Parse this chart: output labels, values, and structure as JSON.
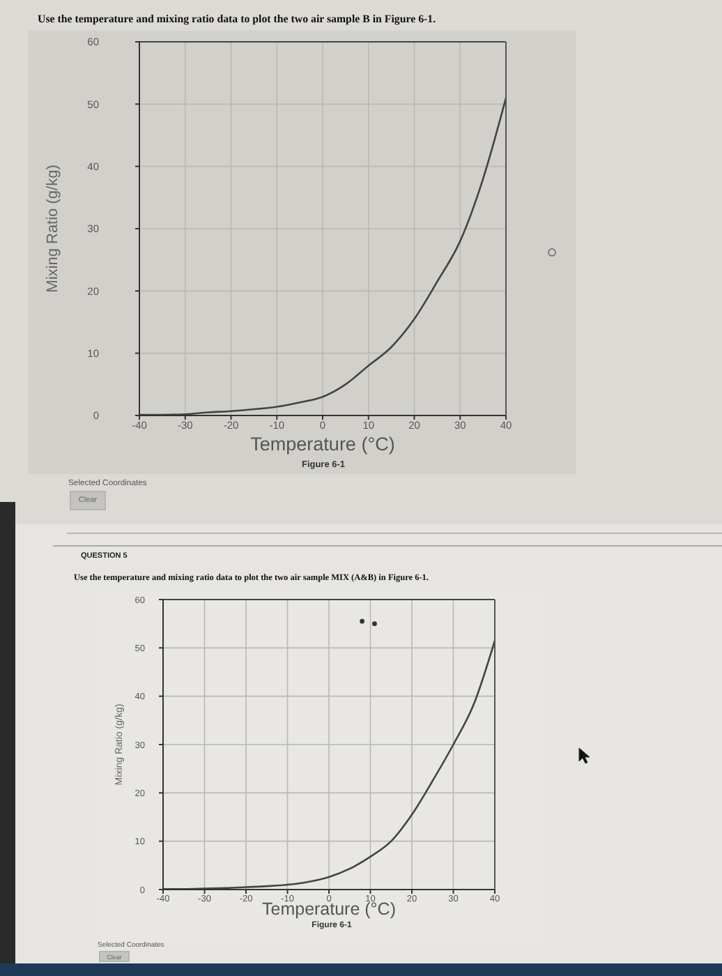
{
  "chart_data": [
    {
      "type": "line",
      "title": "Use the temperature and mixing ratio data to plot the two air sample B in Figure 6-1.",
      "xlabel": "Temperature (°C)",
      "ylabel": "Mixing Ratio (g/kg)",
      "annotations": [
        "Figure 6-1",
        "Selected Coordinates",
        "Clear"
      ],
      "x": [
        -40,
        -35,
        -30,
        -25,
        -20,
        -15,
        -10,
        -5,
        0,
        5,
        10,
        15,
        20,
        25,
        30,
        35,
        40
      ],
      "series": [
        {
          "color": "#444444",
          "values": [
            0.1,
            0.1,
            0.2,
            0.5,
            0.7,
            1,
            1.4,
            2.1,
            3,
            5,
            8,
            11,
            15.5,
            21.5,
            28,
            38,
            51
          ]
        }
      ],
      "xlim": [
        -40,
        40
      ],
      "ylim": [
        0,
        60
      ],
      "xticks": [
        -40,
        -30,
        -20,
        -10,
        0,
        10,
        20,
        30,
        40
      ],
      "yticks": [
        0,
        10,
        20,
        30,
        40,
        50,
        60
      ],
      "grid": true,
      "marker": "none"
    },
    {
      "type": "line",
      "subtitle": "QUESTION 5",
      "title": "Use the temperature and mixing ratio data to plot the two air sample MIX (A&B) in Figure 6-1.",
      "xlabel": "Temperature (°C)",
      "ylabel": "Mixing Ratio (g/kg)",
      "annotations": [
        "Figure 6-1",
        "Selected Coordinates",
        "Clear"
      ],
      "x": [
        -40,
        -35,
        -30,
        -25,
        -20,
        -15,
        -10,
        -5,
        0,
        5,
        10,
        15,
        20,
        25,
        30,
        35,
        40
      ],
      "series": [
        {
          "color": "#444444",
          "values": [
            0.1,
            0.1,
            0.2,
            0.3,
            0.5,
            0.7,
            1,
            1.6,
            2.6,
            4.3,
            6.8,
            10,
            15.5,
            22.5,
            30,
            38.5,
            51.5
          ]
        },
        {
          "type": "scatter",
          "color": "#333333",
          "marker": "circle",
          "x": [
            8,
            11
          ],
          "values": [
            55.5,
            55
          ]
        }
      ],
      "xlim": [
        -40,
        40
      ],
      "ylim": [
        0,
        60
      ],
      "xticks": [
        -40,
        -30,
        -20,
        -10,
        0,
        10,
        20,
        30,
        40
      ],
      "yticks": [
        0,
        10,
        20,
        30,
        40,
        50,
        60
      ],
      "grid": true
    }
  ]
}
